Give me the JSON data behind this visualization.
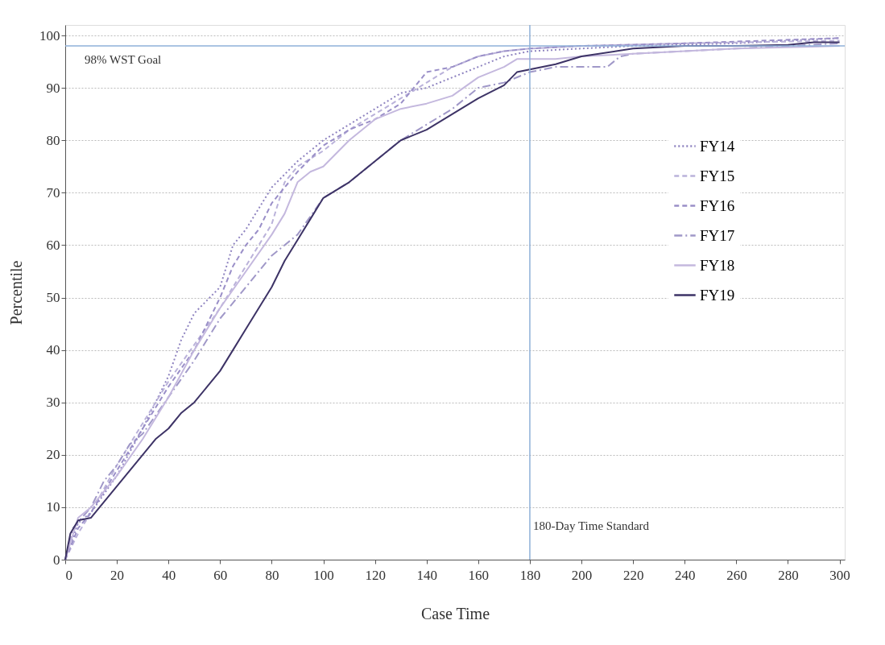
{
  "chart_data": {
    "type": "line",
    "xlabel": "Case Time",
    "ylabel": "Percentile",
    "xlim": [
      0,
      302
    ],
    "xticks": [
      0,
      20,
      40,
      60,
      80,
      100,
      120,
      140,
      160,
      180,
      200,
      220,
      240,
      260,
      280,
      300
    ],
    "ylim": [
      0,
      102
    ],
    "yticks": [
      0,
      10,
      20,
      30,
      40,
      50,
      60,
      70,
      80,
      90,
      100
    ],
    "grid": "y",
    "legend": "top right",
    "marker": "none",
    "ref_lines": [
      {
        "axis": "y",
        "value": 98,
        "label": "98% WST Goal",
        "color": "#8fb0d8"
      },
      {
        "axis": "x",
        "value": 180,
        "label": "180-Day Time Standard",
        "color": "#8fb0d8"
      }
    ],
    "series": [
      {
        "name": "FY14",
        "color": "#8f84c0",
        "line_style": "dotted",
        "x": [
          0,
          5,
          10,
          20,
          30,
          40,
          45,
          50,
          60,
          65,
          70,
          80,
          90,
          100,
          110,
          120,
          130,
          140,
          150,
          160,
          170,
          180,
          200,
          220,
          260,
          300
        ],
        "values": [
          0,
          7,
          9,
          16,
          25,
          35,
          42,
          47,
          52,
          60,
          63,
          71,
          76,
          80,
          83,
          86,
          89,
          90,
          92,
          94,
          96,
          97,
          97.5,
          98,
          98.5,
          99.5
        ]
      },
      {
        "name": "FY15",
        "color": "#bab2da",
        "line_style": "dashed",
        "x": [
          0,
          5,
          10,
          20,
          30,
          40,
          50,
          60,
          70,
          80,
          85,
          90,
          100,
          110,
          120,
          130,
          140,
          150,
          160,
          170,
          180,
          200,
          240,
          300
        ],
        "values": [
          0,
          5,
          9,
          18,
          26,
          34,
          41,
          48,
          56,
          64,
          72,
          75,
          78,
          82,
          85,
          88,
          91,
          94,
          96,
          97,
          97.5,
          98,
          98.5,
          99
        ]
      },
      {
        "name": "FY16",
        "color": "#9a8fc8",
        "line_style": "dashed",
        "x": [
          0,
          5,
          10,
          20,
          30,
          40,
          50,
          60,
          65,
          70,
          75,
          80,
          90,
          100,
          110,
          120,
          130,
          140,
          150,
          160,
          170,
          180,
          200,
          240,
          300
        ],
        "values": [
          0,
          6,
          9,
          17,
          25,
          33,
          40,
          50,
          56,
          60,
          63,
          68,
          74,
          79,
          82,
          84,
          87,
          93,
          94,
          96,
          97,
          97.5,
          98,
          98.5,
          99.5
        ]
      },
      {
        "name": "FY17",
        "color": "#a098c8",
        "line_style": "dashdot",
        "x": [
          0,
          3,
          10,
          15,
          20,
          25,
          30,
          40,
          50,
          60,
          70,
          80,
          90,
          100,
          110,
          120,
          130,
          140,
          150,
          160,
          170,
          180,
          190,
          210,
          215,
          220,
          240,
          260,
          300
        ],
        "values": [
          0,
          6,
          10,
          15,
          18,
          22,
          24,
          31,
          38,
          46,
          52,
          58,
          62,
          69,
          72,
          76,
          80,
          83,
          86,
          90,
          91,
          93,
          94,
          94,
          96,
          96.5,
          97,
          97.5,
          98.5
        ]
      },
      {
        "name": "FY18",
        "color": "#c4b8de",
        "line_style": "solid",
        "x": [
          0,
          5,
          10,
          20,
          30,
          40,
          50,
          60,
          70,
          80,
          85,
          90,
          95,
          100,
          110,
          120,
          130,
          140,
          150,
          160,
          170,
          175,
          190,
          200,
          220,
          240,
          260,
          300
        ],
        "values": [
          0,
          8,
          10,
          16,
          23,
          31,
          40,
          48,
          55,
          62,
          66,
          72,
          74,
          75,
          80,
          84,
          86,
          87,
          88.5,
          92,
          94,
          95.5,
          95.5,
          96,
          96.5,
          97,
          97.5,
          98
        ]
      },
      {
        "name": "FY19",
        "color": "#3d3366",
        "line_style": "solid",
        "x": [
          0,
          2,
          5,
          10,
          15,
          20,
          25,
          30,
          35,
          40,
          45,
          50,
          55,
          60,
          65,
          70,
          75,
          80,
          85,
          90,
          95,
          100,
          110,
          120,
          130,
          140,
          150,
          160,
          170,
          175,
          180,
          190,
          200,
          220,
          240,
          260,
          280,
          290,
          300
        ],
        "values": [
          0,
          5,
          7.5,
          8,
          11,
          14,
          17,
          20,
          23,
          25,
          28,
          30,
          33,
          36,
          40,
          44,
          48,
          52,
          57,
          61,
          65,
          69,
          72,
          76,
          80,
          82,
          85,
          88,
          90.5,
          93,
          93.5,
          94.5,
          96,
          97.5,
          98,
          98,
          98.2,
          98.7,
          98.7
        ]
      }
    ]
  }
}
